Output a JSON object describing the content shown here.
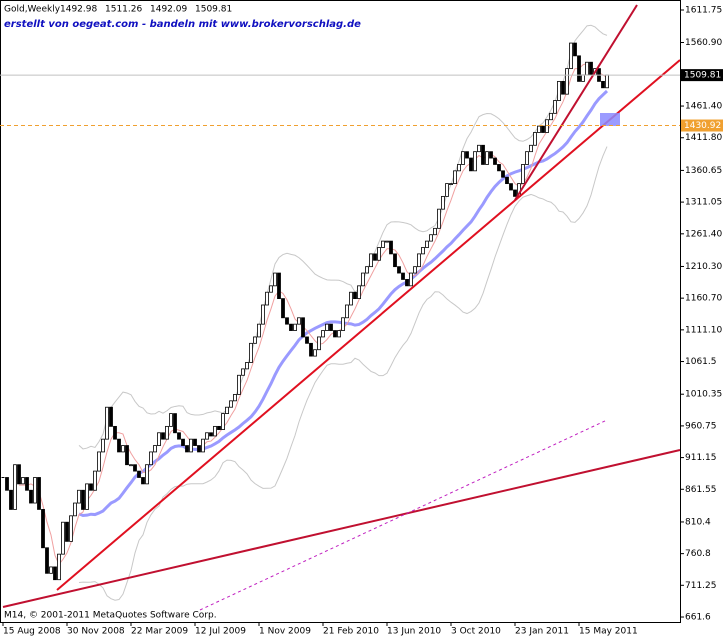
{
  "chart_data": {
    "type": "candlestick",
    "title": "Gold,Weekly",
    "ohlc_header": [
      1492.98,
      1511.26,
      1492.09,
      1509.81
    ],
    "annotation": "erstellt von oegeat.com - bandeln mit www.brokervorschlag.de",
    "footer": "M14, © 2001-2011 MetaQuotes Software Corp.",
    "categories": [
      "15 Aug 2008",
      null,
      null,
      null,
      null,
      null,
      null,
      null,
      null,
      null,
      null,
      null,
      null,
      null,
      null,
      null,
      "30 Nov 2008",
      null,
      null,
      null,
      null,
      null,
      null,
      null,
      null,
      null,
      null,
      null,
      null,
      null,
      null,
      null,
      "22 Mar 2009",
      null,
      null,
      null,
      null,
      null,
      null,
      null,
      null,
      null,
      null,
      null,
      null,
      null,
      null,
      null,
      "12 Jul 2009",
      null,
      null,
      null,
      null,
      null,
      null,
      null,
      null,
      null,
      null,
      null,
      null,
      null,
      null,
      null,
      "1 Nov 2009",
      null,
      null,
      null,
      null,
      null,
      null,
      null,
      null,
      null,
      null,
      null,
      null,
      null,
      null,
      null,
      "21 Feb 2010",
      null,
      null,
      null,
      null,
      null,
      null,
      null,
      null,
      null,
      null,
      null,
      null,
      null,
      null,
      null,
      "13 Jun 2010",
      null,
      null,
      null,
      null,
      null,
      null,
      null,
      null,
      null,
      null,
      null,
      null,
      null,
      null,
      null,
      "3 Oct 2010",
      null,
      null,
      null,
      null,
      null,
      null,
      null,
      null,
      null,
      null,
      null,
      null,
      null,
      null,
      null,
      "23 Jan 2011",
      null,
      null,
      null,
      null,
      null,
      null,
      null,
      null,
      null,
      null,
      null,
      null,
      null,
      null,
      null,
      "15 May 2011",
      null,
      null,
      null,
      null,
      null,
      null,
      null
    ],
    "values": [
      880,
      860,
      830,
      900,
      870,
      880,
      860,
      840,
      880,
      830,
      770,
      730,
      740,
      720,
      760,
      810,
      780,
      820,
      840,
      860,
      830,
      870,
      860,
      890,
      920,
      940,
      990,
      960,
      940,
      920,
      930,
      900,
      900,
      890,
      880,
      870,
      900,
      920,
      930,
      950,
      940,
      960,
      980,
      950,
      940,
      930,
      920,
      940,
      930,
      920,
      940,
      950,
      945,
      960,
      955,
      980,
      990,
      1000,
      1010,
      1040,
      1050,
      1060,
      1090,
      1100,
      1120,
      1150,
      1170,
      1180,
      1200,
      1160,
      1130,
      1120,
      1110,
      1120,
      1130,
      1100,
      1090,
      1070,
      1080,
      1100,
      1110,
      1120,
      1110,
      1100,
      1110,
      1130,
      1150,
      1170,
      1160,
      1180,
      1200,
      1210,
      1230,
      1220,
      1240,
      1250,
      1250,
      1230,
      1210,
      1200,
      1190,
      1180,
      1200,
      1210,
      1230,
      1240,
      1250,
      1260,
      1270,
      1300,
      1320,
      1340,
      1340,
      1360,
      1370,
      1390,
      1380,
      1360,
      1390,
      1400,
      1370,
      1390,
      1380,
      1370,
      1360,
      1350,
      1340,
      1330,
      1320,
      1340,
      1370,
      1390,
      1400,
      1420,
      1430,
      1420,
      1440,
      1450,
      1470,
      1500,
      1480,
      1520,
      1560,
      1540,
      1500,
      1510,
      1530,
      1510,
      1520,
      1500,
      1490,
      1509.81
    ],
    "color": "#000000",
    "ylim": [
      653.8,
      1627.4
    ],
    "yticks": [
      {
        "value": 1611.75,
        "label": "1611.75"
      },
      {
        "value": 1560.9,
        "label": "1560.90"
      },
      {
        "value": 1461.4,
        "label": "1461.40"
      },
      {
        "value": 1411.8,
        "label": "1411.80"
      },
      {
        "value": 1360.65,
        "label": "1360.65"
      },
      {
        "value": 1311.05,
        "label": "1311.05"
      },
      {
        "value": 1261.4,
        "label": "1261.40"
      },
      {
        "value": 1210.3,
        "label": "1210.30"
      },
      {
        "value": 1160.7,
        "label": "1160.70"
      },
      {
        "value": 1111.1,
        "label": "1111.10"
      },
      1061.5,
      1010.35,
      960.75,
      911.15,
      861.55,
      810.4,
      760.8,
      711.25,
      661.6
    ],
    "current_price": 1509.81,
    "level": 1430.92,
    "level_color": "#f0a030"
  }
}
